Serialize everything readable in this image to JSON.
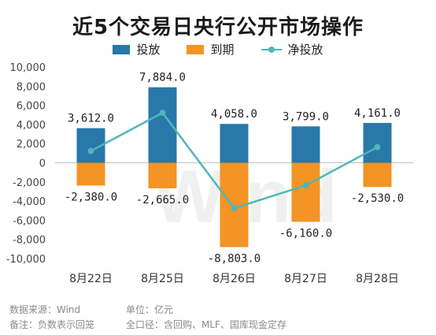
{
  "colors": {
    "put": "#2878a9",
    "mature": "#f39425",
    "net": "#4fb7b9"
  },
  "chart_data": {
    "type": "bar",
    "title": "近5个交易日央行公开市场操作",
    "categories": [
      "8月22日",
      "8月25日",
      "8月26日",
      "8月27日",
      "8月28日"
    ],
    "series": [
      {
        "name": "投放",
        "type": "bar",
        "values": [
          3612.0,
          7884.0,
          4058.0,
          3799.0,
          4161.0
        ],
        "labels": [
          "3,612.0",
          "7,884.0",
          "4,058.0",
          "3,799.0",
          "4,161.0"
        ]
      },
      {
        "name": "到期",
        "type": "bar",
        "values": [
          -2380.0,
          -2665.0,
          -8803.0,
          -6160.0,
          -2530.0
        ],
        "labels": [
          "-2,380.0",
          "-2,665.0",
          "-8,803.0",
          "-6,160.0",
          "-2,530.0"
        ]
      },
      {
        "name": "净投放",
        "type": "line",
        "values": [
          1232.0,
          5219.0,
          -4745.0,
          -2361.0,
          1631.0
        ]
      }
    ],
    "yticks": [
      "10,000",
      "8,000",
      "6,000",
      "4,000",
      "2,000",
      "0",
      "-2,000",
      "-4,000",
      "-6,000",
      "-8,000",
      "-10,000"
    ],
    "ylim": [
      -10000,
      10000
    ],
    "legend_position": "top-center",
    "grid": false
  },
  "watermark": "Wind",
  "footer": {
    "source": "数据来源：Wind",
    "unit": "单位：亿元",
    "note": "备注：负数表示回笼",
    "scope": "全口径：含回购、MLF、国库现金定存"
  }
}
